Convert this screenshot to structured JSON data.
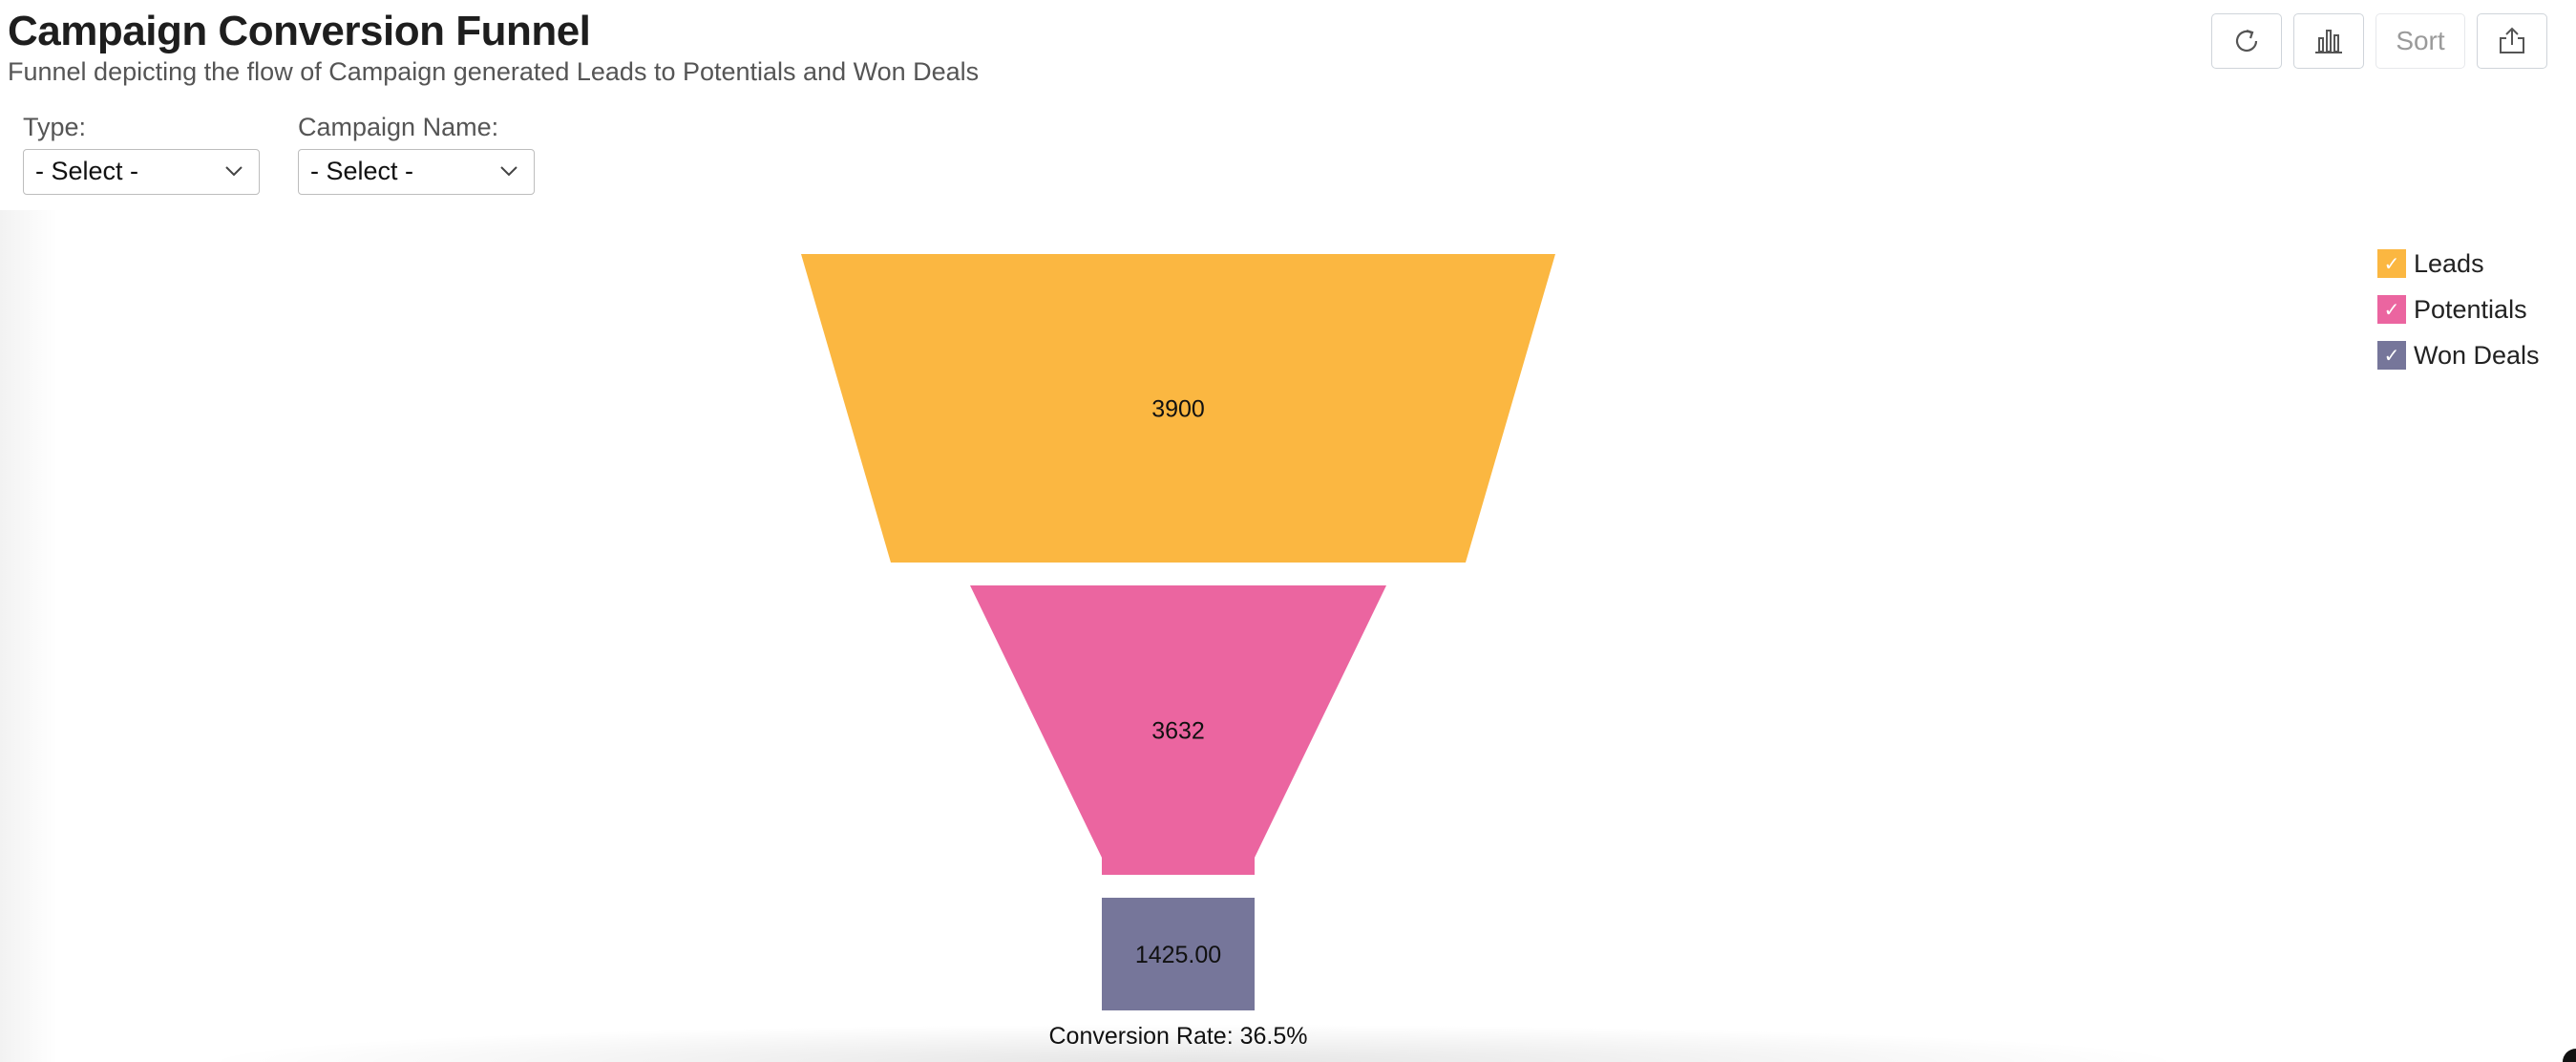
{
  "header": {
    "title": "Campaign Conversion Funnel",
    "subtitle": "Funnel depicting the flow of Campaign generated Leads to Potentials and Won Deals"
  },
  "filters": [
    {
      "label": "Type:",
      "value": "- Select -"
    },
    {
      "label": "Campaign Name:",
      "value": "- Select -"
    }
  ],
  "toolbar": {
    "refresh_icon": "refresh-icon",
    "chart_icon": "bar-chart-icon",
    "sort_label": "Sort",
    "export_icon": "export-icon"
  },
  "legend": [
    {
      "label": "Leads",
      "color": "#FBB741"
    },
    {
      "label": "Potentials",
      "color": "#EB65A0"
    },
    {
      "label": "Won Deals",
      "color": "#76769A"
    }
  ],
  "chart_data": {
    "type": "funnel",
    "title": "Campaign Conversion Funnel",
    "categories": [
      "Leads",
      "Potentials",
      "Won Deals"
    ],
    "values": [
      3900,
      3632,
      1425
    ],
    "labels": [
      "3900",
      "3632",
      "1425.00"
    ],
    "colors": [
      "#FBB741",
      "#EB65A0",
      "#76769A"
    ],
    "footer": "Conversion Rate: 36.5%",
    "legend_position": "top-right"
  }
}
